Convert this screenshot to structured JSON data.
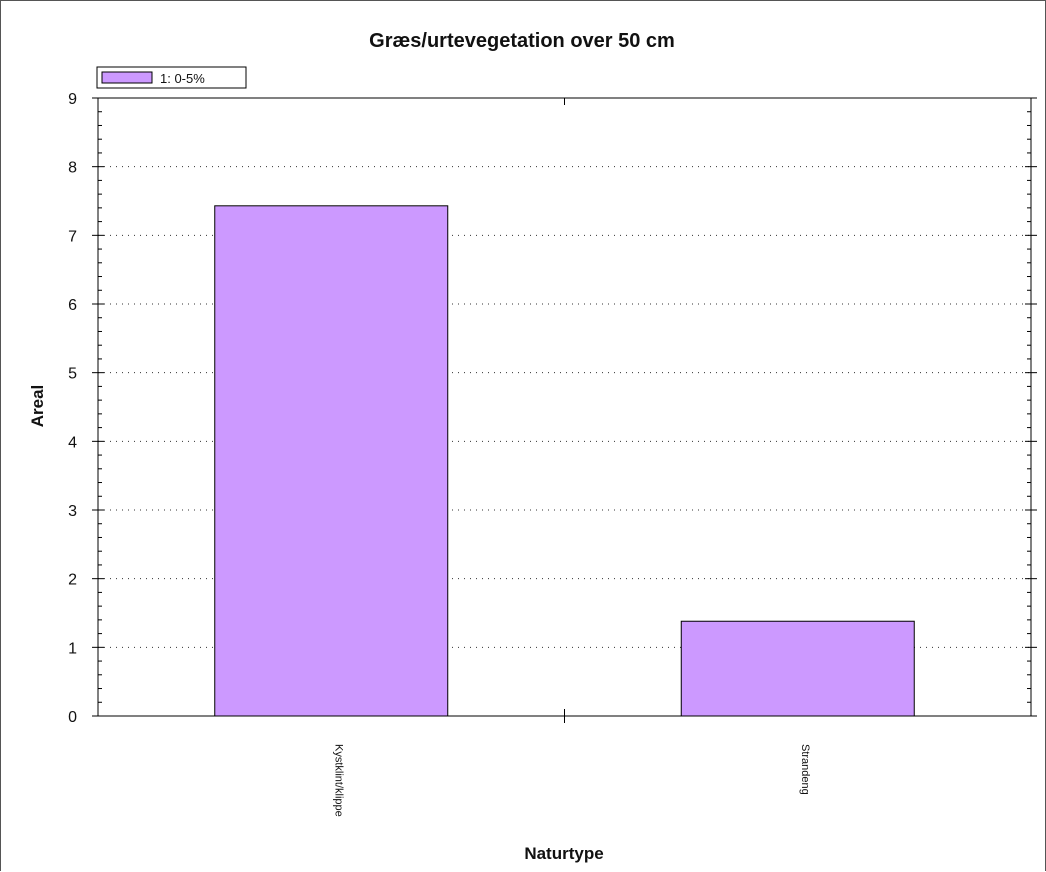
{
  "chart_data": {
    "type": "bar",
    "title": "Græs/urtevegetation over 50 cm",
    "xlabel": "Naturtype",
    "ylabel": "Areal",
    "categories": [
      "Kystklint/klippe",
      "Strandeng"
    ],
    "series": [
      {
        "name": "1: 0-5%",
        "values": [
          7.43,
          1.38
        ]
      }
    ],
    "ylim": [
      0,
      9
    ],
    "yticks": [
      "0",
      "1",
      "2",
      "3",
      "4",
      "5",
      "6",
      "7",
      "8",
      "9"
    ],
    "grid": true,
    "legend": "top-left",
    "colors": {
      "bar": "#cc99ff",
      "bar_stroke": "#000000",
      "grid": "#333333"
    }
  }
}
